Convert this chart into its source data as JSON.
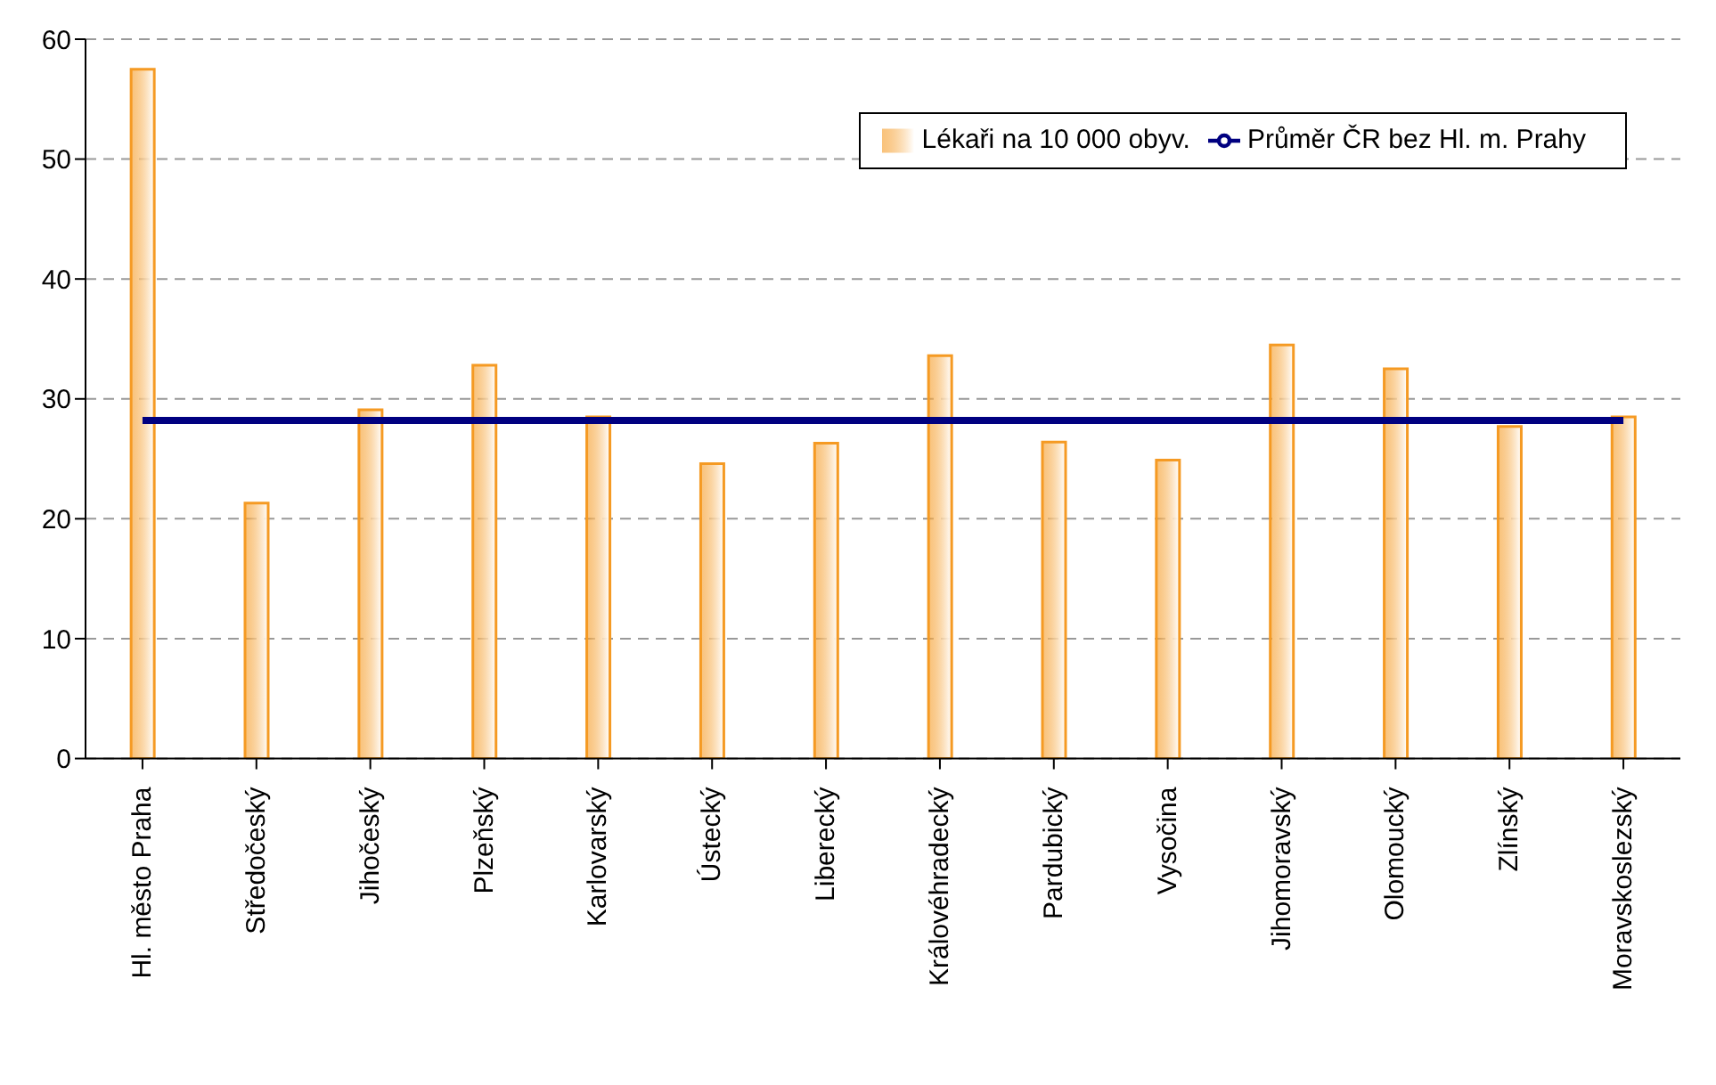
{
  "chart_data": {
    "type": "bar",
    "categories": [
      "Hl. město Praha",
      "Středočeský",
      "Jihočeský",
      "Plzeňský",
      "Karlovarský",
      "Ústecký",
      "Liberecký",
      "Královéhradecký",
      "Pardubický",
      "Vysočina",
      "Jihomoravský",
      "Olomoucký",
      "Zlínský",
      "Moravskoslezský"
    ],
    "series": [
      {
        "name": "Lékaři na 10 000 obyv.",
        "color": "#f59a23",
        "values": [
          57.5,
          21.3,
          29.1,
          32.8,
          28.5,
          24.6,
          26.3,
          33.6,
          26.4,
          24.9,
          34.5,
          32.5,
          27.7,
          28.5
        ]
      },
      {
        "name": "Průměr ČR bez Hl. m. Prahy",
        "type": "line",
        "color": "#000080",
        "marker": "none",
        "values": [
          28.2,
          28.2,
          28.2,
          28.2,
          28.2,
          28.2,
          28.2,
          28.2,
          28.2,
          28.2,
          28.2,
          28.2,
          28.2,
          28.2
        ]
      }
    ],
    "ylim": [
      0,
      60
    ],
    "yticks": [
      0,
      10,
      20,
      30,
      40,
      50,
      60
    ],
    "grid": "y",
    "legend": "top right"
  }
}
